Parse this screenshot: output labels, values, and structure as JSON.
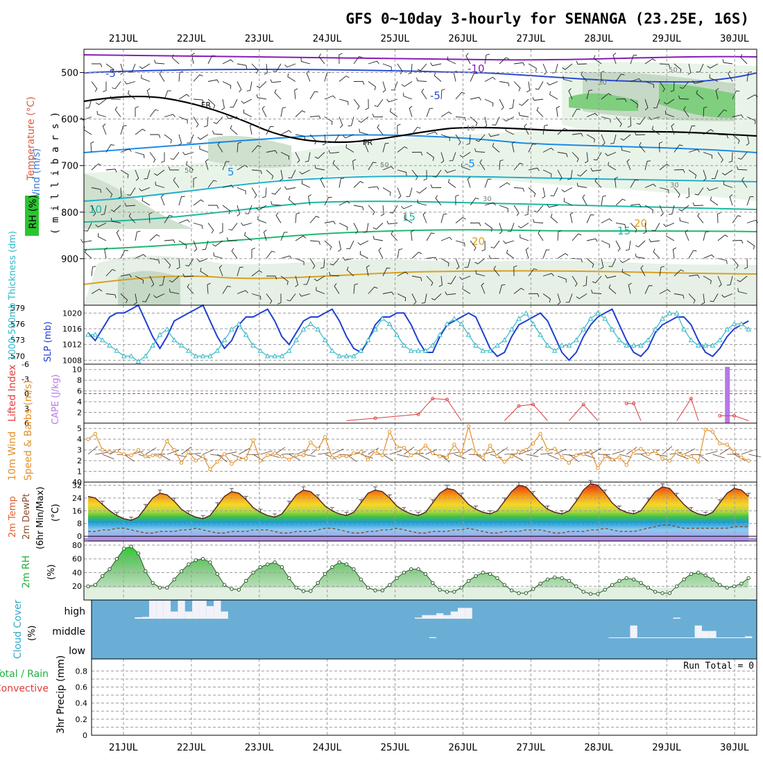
{
  "title": "GFS 0~10day 3-hourly for SENANGA (23.25E, 16S)",
  "date_labels": [
    "21JUL",
    "22JUL",
    "23JUL",
    "24JUL",
    "25JUL",
    "26JUL",
    "27JUL",
    "28JUL",
    "29JUL",
    "30JUL"
  ],
  "colors": {
    "slp": "#1f3fd0",
    "thickness": "#30b8c8",
    "wind": "#e0902a",
    "lifted": "#e03c3c",
    "cape": "#b878e8",
    "rh": "#20b040",
    "cloud": "#6aaed6",
    "grid": "#9a9a9a",
    "freezing": "#000000"
  },
  "chart_data": [
    {
      "id": "upper_air",
      "type": "contour",
      "ylabel_parts": [
        "Wind (m/s)",
        "Temperature (°C)",
        "RH (%)"
      ],
      "yunit_label": "( m i l l i b a r s )",
      "yticks": [
        "500",
        "600",
        "700",
        "800",
        "900"
      ],
      "ylim": [
        1000,
        450
      ],
      "rh_levels": [
        "10",
        "30",
        "50",
        "70",
        "90"
      ],
      "temperature_labels": [
        "-10",
        "-5",
        "-5",
        "-5",
        "5",
        "5",
        "10",
        "15",
        "15",
        "20",
        "20"
      ],
      "freezing_label": "FR"
    },
    {
      "id": "slp_thickness",
      "type": "line",
      "left_label": "1000-500mb Thickness (dm)",
      "right_label": "SLP (mb)",
      "left_ticks": [
        "579",
        "576",
        "573",
        "570"
      ],
      "right_ticks": [
        "1020",
        "1016",
        "1012",
        "1008"
      ],
      "left_ylim": [
        568.5,
        579.5
      ],
      "right_ylim": [
        1007,
        1022
      ],
      "series": [
        {
          "name": "SLP (mb)",
          "values": [
            1015,
            1013,
            1016,
            1019,
            1020,
            1020,
            1021,
            1022,
            1018,
            1014,
            1011,
            1014,
            1018,
            1019,
            1020,
            1021,
            1022,
            1018,
            1014,
            1011,
            1013,
            1017,
            1019,
            1019,
            1020,
            1021,
            1018,
            1014,
            1012,
            1015,
            1018,
            1019,
            1019,
            1020,
            1021,
            1018,
            1014,
            1011,
            1010,
            1013,
            1017,
            1019,
            1019,
            1020,
            1020,
            1017,
            1013,
            1010,
            1010,
            1014,
            1017,
            1018,
            1019,
            1020,
            1019,
            1015,
            1011,
            1009,
            1010,
            1014,
            1017,
            1018,
            1019,
            1020,
            1018,
            1014,
            1010,
            1008,
            1010,
            1014,
            1017,
            1019,
            1020,
            1021,
            1017,
            1013,
            1010,
            1009,
            1011,
            1015,
            1017,
            1018,
            1019,
            1019,
            1017,
            1013,
            1010,
            1009,
            1011,
            1014,
            1016,
            1017,
            1018
          ]
        },
        {
          "name": "Thickness (dm)",
          "values": [
            574,
            574,
            573,
            572,
            571,
            570,
            570,
            569,
            570,
            572,
            574,
            575,
            573,
            572,
            571,
            570,
            570,
            570,
            571,
            573,
            575,
            576,
            574,
            572,
            571,
            570,
            570,
            570,
            571,
            573,
            575,
            576,
            575,
            573,
            571,
            570,
            570,
            570,
            571,
            573,
            575,
            577,
            576,
            574,
            572,
            571,
            571,
            571,
            572,
            574,
            576,
            577,
            576,
            574,
            572,
            571,
            571,
            572,
            573,
            575,
            577,
            578,
            576,
            574,
            572,
            571,
            572,
            572,
            573,
            575,
            577,
            578,
            577,
            575,
            573,
            572,
            572,
            572,
            573,
            575,
            577,
            578,
            578,
            575,
            573,
            572,
            572,
            572,
            573,
            575,
            576,
            576,
            575
          ]
        }
      ]
    },
    {
      "id": "lifted_cape",
      "type": "line+bar",
      "left_label": "Lifted Index",
      "right_label": "CAPE (J/kg)",
      "left_ticks": [
        "-6",
        "-3",
        "0",
        "3",
        "6"
      ],
      "right_ticks": [
        "10",
        "8",
        "6",
        "4",
        "2"
      ],
      "left_ylim": [
        -6,
        6
      ],
      "right_ylim": [
        0,
        11
      ],
      "lifted_index_points": [
        [
          36,
          5.5
        ],
        [
          40,
          5.0
        ],
        [
          46,
          4.2
        ],
        [
          48,
          1.0
        ],
        [
          50,
          1.2
        ],
        [
          52,
          5.5
        ],
        [
          58,
          5.5
        ],
        [
          60,
          2.5
        ],
        [
          62,
          2.2
        ],
        [
          64,
          5.5
        ],
        [
          67,
          5.5
        ],
        [
          69,
          2.2
        ],
        [
          71,
          5.5
        ],
        [
          75,
          2.0
        ],
        [
          76,
          2.0
        ],
        [
          77,
          5.5
        ],
        [
          82,
          5.5
        ],
        [
          84,
          1.0
        ],
        [
          85,
          5.5
        ],
        [
          88,
          4.5
        ],
        [
          90,
          4.5
        ],
        [
          92,
          5.5
        ]
      ],
      "cape_bars": [
        {
          "x": 89,
          "value": 10.5
        }
      ]
    },
    {
      "id": "wind10m",
      "type": "line",
      "left_label": "10m Wind",
      "right_label": "Speed & Barbs (m/s)",
      "yticks": [
        "5",
        "4",
        "3",
        "2",
        "1",
        "0"
      ],
      "ylim": [
        0,
        5.5
      ],
      "series": [
        {
          "name": "10m Wind Speed (m/s)",
          "values": [
            4.0,
            4.5,
            3.0,
            2.8,
            2.9,
            2.6,
            2.5,
            3.0,
            2.4,
            2.5,
            2.4,
            3.8,
            3.0,
            1.8,
            2.8,
            2.0,
            2.4,
            1.2,
            1.9,
            2.6,
            1.7,
            2.2,
            2.2,
            3.9,
            2.0,
            2.5,
            2.7,
            2.4,
            2.1,
            2.5,
            2.5,
            3.7,
            3.1,
            4.2,
            2.3,
            2.4,
            2.4,
            2.7,
            2.8,
            2.1,
            2.9,
            2.5,
            4.7,
            3.3,
            3.2,
            2.5,
            2.8,
            3.4,
            2.7,
            2.4,
            2.3,
            3.5,
            2.6,
            5.2,
            2.7,
            2.3,
            3.4,
            2.4,
            1.9,
            2.4,
            2.8,
            3.0,
            3.6,
            4.5,
            3.0,
            3.1,
            2.3,
            1.8,
            2.5,
            2.6,
            2.8,
            1.3,
            2.4,
            2.1,
            2.3,
            1.6,
            2.9,
            3.1,
            2.6,
            2.9,
            2.2,
            2.0,
            2.8,
            2.5,
            2.4,
            1.9,
            4.9,
            4.7,
            3.6,
            3.5,
            2.8,
            2.3,
            2.0
          ]
        }
      ]
    },
    {
      "id": "temp2m",
      "type": "area",
      "left_label": "2m Temp",
      "left_label2": "2m DewPt",
      "left_label3": "(6hr Min/Max)",
      "unit": "(°C)",
      "yticks": [
        "32",
        "24",
        "16",
        "8",
        "0"
      ],
      "ylim": [
        -3,
        34
      ],
      "series": [
        {
          "name": "2m Temp (°C)",
          "values": [
            25,
            24,
            20,
            16,
            13,
            11,
            10,
            12,
            18,
            24,
            27,
            26,
            22,
            17,
            14,
            12,
            11,
            13,
            19,
            25,
            28,
            27,
            23,
            18,
            15,
            13,
            12,
            14,
            20,
            26,
            29,
            28,
            24,
            19,
            16,
            14,
            13,
            15,
            21,
            27,
            29,
            28,
            24,
            19,
            16,
            14,
            13,
            15,
            21,
            27,
            30,
            29,
            25,
            20,
            17,
            15,
            14,
            16,
            22,
            28,
            32,
            31,
            26,
            21,
            17,
            15,
            14,
            16,
            22,
            29,
            33,
            32,
            27,
            21,
            17,
            15,
            14,
            16,
            22,
            28,
            31,
            30,
            25,
            20,
            16,
            14,
            13,
            15,
            21,
            27,
            30,
            29,
            25
          ]
        },
        {
          "name": "2m DewPt (°C)",
          "values": [
            3,
            3,
            4,
            4,
            5,
            5,
            4,
            3,
            2,
            2,
            3,
            3,
            3,
            4,
            4,
            5,
            4,
            3,
            2,
            2,
            3,
            3,
            3,
            4,
            4,
            4,
            3,
            2,
            2,
            3,
            3,
            3,
            4,
            5,
            5,
            4,
            3,
            2,
            2,
            3,
            3,
            4,
            4,
            5,
            4,
            3,
            2,
            2,
            3,
            3,
            3,
            4,
            4,
            5,
            4,
            3,
            2,
            2,
            3,
            3,
            3,
            4,
            4,
            4,
            3,
            2,
            2,
            3,
            3,
            3,
            4,
            4,
            5,
            4,
            3,
            3,
            3,
            4,
            5,
            6,
            7,
            7,
            6,
            5,
            5,
            5,
            5,
            5,
            5,
            5,
            6,
            6,
            6
          ]
        }
      ]
    },
    {
      "id": "rh2m",
      "type": "area",
      "left_label": "2m RH",
      "unit": "(%)",
      "yticks": [
        "80",
        "60",
        "40",
        "20"
      ],
      "ylim": [
        0,
        86
      ],
      "series": [
        {
          "name": "2m RH (%)",
          "values": [
            20,
            22,
            35,
            45,
            60,
            75,
            78,
            68,
            42,
            25,
            18,
            18,
            30,
            42,
            52,
            58,
            60,
            55,
            38,
            22,
            16,
            15,
            28,
            40,
            48,
            52,
            55,
            48,
            32,
            18,
            13,
            13,
            25,
            38,
            48,
            55,
            52,
            45,
            30,
            18,
            14,
            14,
            22,
            32,
            40,
            45,
            45,
            38,
            25,
            15,
            12,
            12,
            18,
            28,
            35,
            40,
            38,
            32,
            22,
            14,
            10,
            10,
            16,
            24,
            30,
            33,
            32,
            28,
            20,
            12,
            9,
            9,
            15,
            22,
            28,
            32,
            30,
            25,
            18,
            12,
            10,
            10,
            20,
            30,
            38,
            40,
            36,
            30,
            22,
            18,
            20,
            24,
            32
          ]
        }
      ]
    },
    {
      "id": "cloud",
      "type": "bar",
      "left_label": "Cloud Cover",
      "unit": "(%)",
      "row_labels": [
        "high",
        "middle",
        "low"
      ],
      "high_cover": [
        0,
        0,
        0,
        0,
        0,
        0,
        0,
        8,
        10,
        100,
        100,
        100,
        40,
        100,
        40,
        100,
        100,
        70,
        100,
        40,
        0,
        0,
        0,
        0,
        0,
        0,
        0,
        0,
        0,
        0,
        0,
        0,
        0,
        0,
        0,
        0,
        0,
        0,
        0,
        0,
        0,
        0,
        0,
        0,
        0,
        0,
        6,
        20,
        20,
        30,
        20,
        40,
        60,
        60,
        0,
        0,
        0,
        0,
        0,
        0,
        0,
        0,
        0,
        0,
        0,
        0,
        0,
        0,
        0,
        0,
        0,
        0,
        0,
        0,
        0,
        0,
        0,
        0,
        0,
        0,
        0,
        0,
        6,
        0,
        0,
        0,
        0,
        0,
        0,
        0,
        0,
        0,
        0
      ],
      "middle_cover": [
        0,
        0,
        0,
        0,
        0,
        0,
        0,
        0,
        0,
        0,
        0,
        0,
        0,
        0,
        0,
        0,
        0,
        0,
        0,
        0,
        0,
        0,
        0,
        0,
        0,
        0,
        0,
        0,
        0,
        0,
        0,
        0,
        0,
        0,
        0,
        0,
        0,
        0,
        0,
        0,
        0,
        0,
        0,
        0,
        0,
        0,
        0,
        0,
        5,
        0,
        0,
        0,
        0,
        0,
        0,
        0,
        0,
        0,
        0,
        0,
        0,
        0,
        0,
        0,
        0,
        0,
        0,
        0,
        0,
        0,
        0,
        0,
        0,
        4,
        4,
        4,
        70,
        4,
        4,
        4,
        4,
        4,
        4,
        4,
        4,
        70,
        40,
        40,
        4,
        4,
        4,
        4,
        10
      ]
    },
    {
      "id": "precip",
      "type": "bar",
      "left_label_parts": [
        "Total / Rain",
        "Convective"
      ],
      "right_label": "3hr Precip (mm)",
      "yticks": [
        "0.8",
        "0.6",
        "0.4",
        "0.2",
        "0"
      ],
      "ylim": [
        0,
        0.95
      ],
      "run_total_label": "Run Total = 0",
      "values": []
    }
  ]
}
